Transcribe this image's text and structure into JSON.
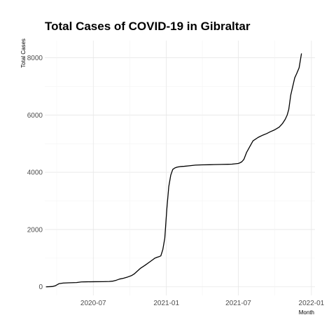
{
  "chart_data": {
    "type": "line",
    "title": "Total Cases of COVID-19 in Gibraltar",
    "xlabel": "Month",
    "ylabel": "Total Cases",
    "x_ticks": [
      "2020-07",
      "2021-01",
      "2021-07",
      "2022-01"
    ],
    "y_ticks": [
      "0",
      "2000",
      "4000",
      "6000",
      "8000"
    ],
    "xlim": [
      "2020-03-01",
      "2022-01-10"
    ],
    "ylim": [
      -300,
      8600
    ],
    "grid": true,
    "line_color": "#000000",
    "series": [
      {
        "x": [
          "2020-03-04",
          "2020-03-20",
          "2020-03-28",
          "2020-04-06",
          "2020-04-16",
          "2020-04-30",
          "2020-05-20",
          "2020-06-01",
          "2020-06-15",
          "2020-07-05",
          "2020-07-25",
          "2020-08-10",
          "2020-08-20",
          "2020-08-28",
          "2020-09-05",
          "2020-09-15",
          "2020-09-25",
          "2020-10-05",
          "2020-10-12",
          "2020-10-20",
          "2020-10-28",
          "2020-11-08",
          "2020-11-18",
          "2020-11-28",
          "2020-12-03",
          "2020-12-08",
          "2020-12-13",
          "2020-12-18",
          "2020-12-23",
          "2020-12-28",
          "2021-01-02",
          "2021-01-07",
          "2021-01-12",
          "2021-01-17",
          "2021-01-22",
          "2021-01-28",
          "2021-02-05",
          "2021-02-15",
          "2021-03-01",
          "2021-03-15",
          "2021-04-01",
          "2021-04-20",
          "2021-05-01",
          "2021-05-20",
          "2021-06-05",
          "2021-06-15",
          "2021-06-25",
          "2021-07-01",
          "2021-07-05",
          "2021-07-10",
          "2021-07-15",
          "2021-07-22",
          "2021-07-30",
          "2021-08-07",
          "2021-08-20",
          "2021-09-01",
          "2021-09-10",
          "2021-09-20",
          "2021-09-30",
          "2021-10-05",
          "2021-10-12",
          "2021-10-20",
          "2021-10-27",
          "2021-11-01",
          "2021-11-05",
          "2021-11-10",
          "2021-11-15",
          "2021-11-20",
          "2021-11-25",
          "2021-12-01",
          "2021-12-04",
          "2021-12-07"
        ],
        "y": [
          0,
          10,
          40,
          110,
          130,
          140,
          150,
          170,
          175,
          178,
          180,
          185,
          200,
          230,
          270,
          300,
          340,
          390,
          450,
          550,
          650,
          750,
          850,
          950,
          1000,
          1030,
          1050,
          1080,
          1300,
          1700,
          2700,
          3500,
          3900,
          4100,
          4150,
          4180,
          4200,
          4210,
          4230,
          4250,
          4260,
          4265,
          4270,
          4275,
          4280,
          4285,
          4300,
          4310,
          4330,
          4370,
          4450,
          4700,
          4900,
          5100,
          5220,
          5300,
          5350,
          5420,
          5480,
          5520,
          5580,
          5700,
          5850,
          6000,
          6200,
          6700,
          7000,
          7300,
          7450,
          7650,
          7900,
          8150
        ]
      }
    ]
  }
}
